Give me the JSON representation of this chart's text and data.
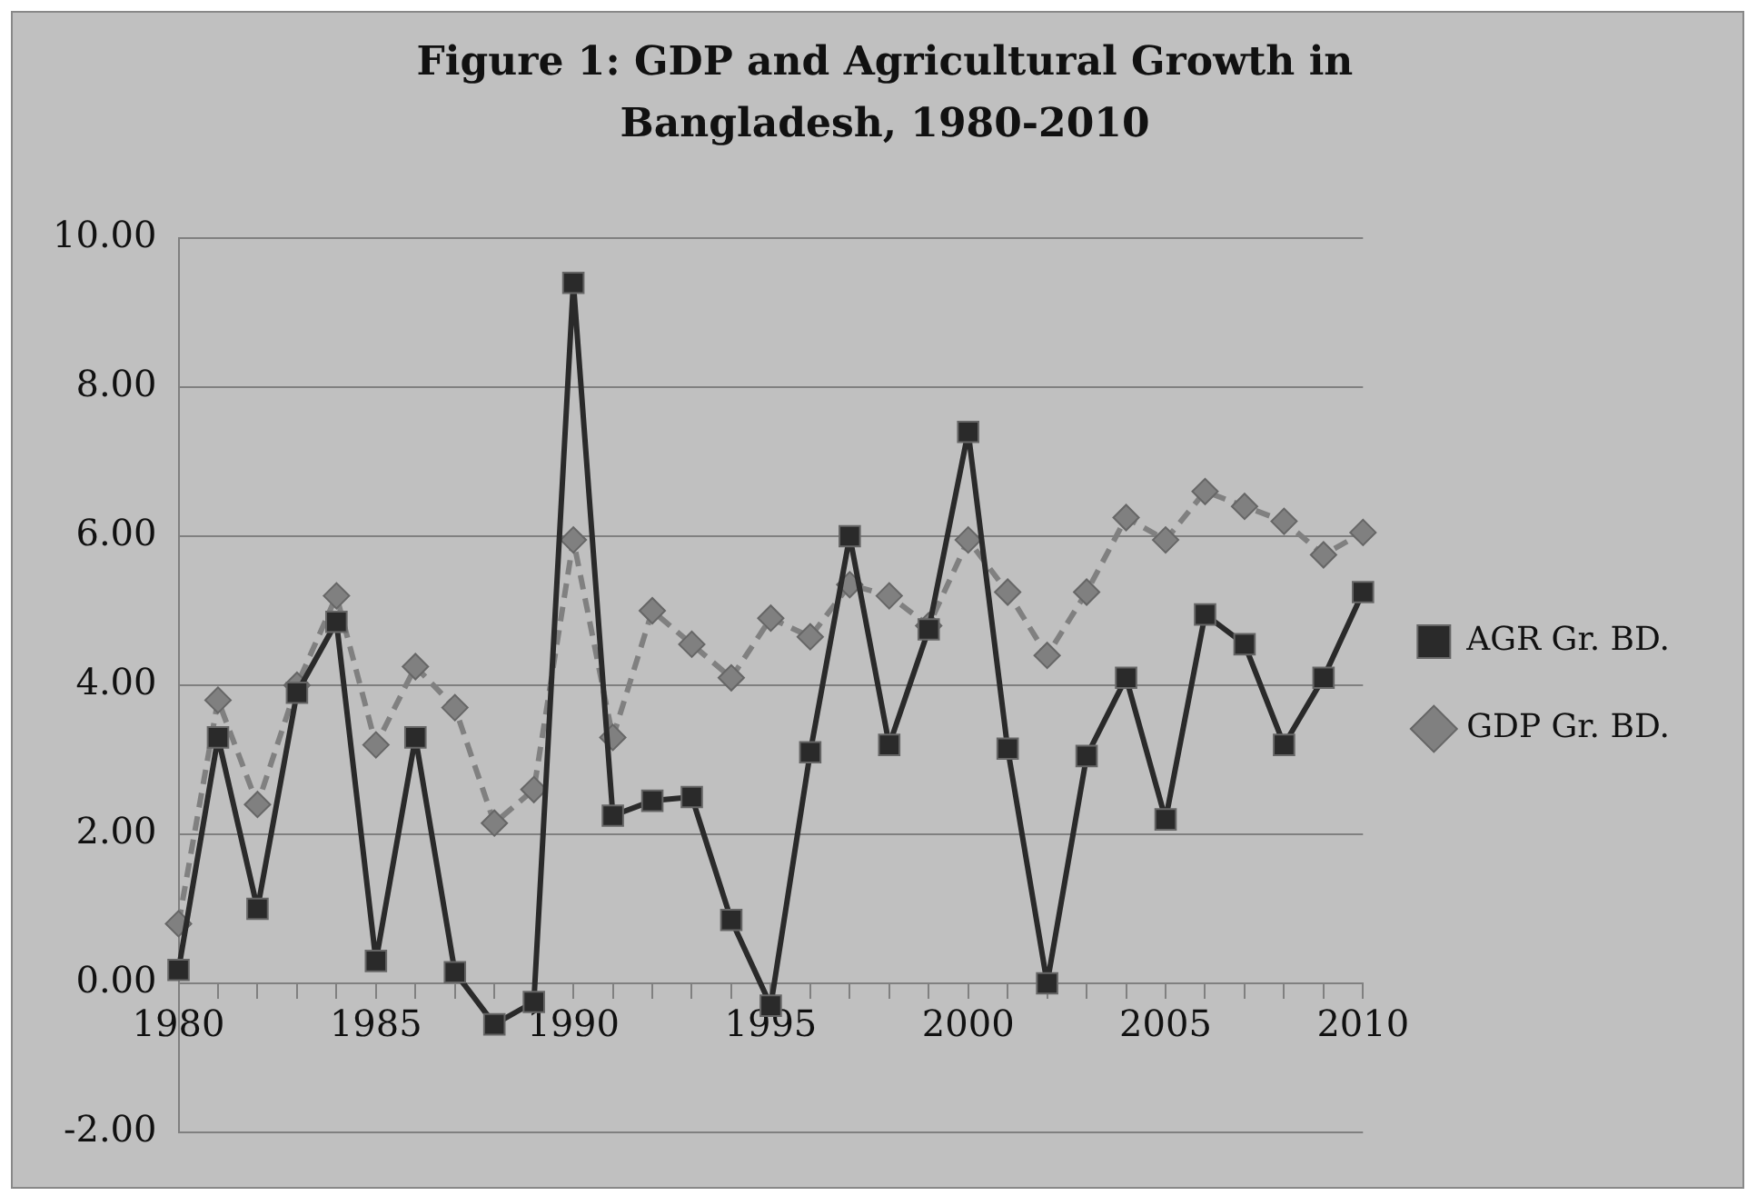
{
  "chart_data": {
    "type": "line",
    "title": "Figure 1: GDP and Agricultural Growth in Bangladesh, 1980-2010",
    "categories": [
      "1980",
      null,
      null,
      null,
      null,
      "1985",
      null,
      null,
      null,
      null,
      "1990",
      null,
      null,
      null,
      null,
      "1995",
      null,
      null,
      null,
      null,
      "2000",
      null,
      null,
      null,
      null,
      "2005",
      null,
      null,
      null,
      null,
      "2010"
    ],
    "series": [
      {
        "name": "GDP Gr. BD.",
        "color": "#808080",
        "marker": "diamond",
        "line_style": "dashed",
        "values": [
          0.8,
          3.8,
          2.4,
          4.0,
          5.2,
          3.2,
          4.25,
          3.7,
          2.15,
          2.6,
          5.95,
          3.3,
          5.0,
          4.55,
          4.1,
          4.9,
          4.65,
          5.35,
          5.2,
          4.8,
          5.95,
          5.25,
          4.4,
          5.25,
          6.25,
          5.95,
          6.6,
          6.4,
          6.2,
          5.75,
          6.05
        ]
      },
      {
        "name": "AGR Gr. BD.",
        "color": "#2a2a2a",
        "marker": "square",
        "line_style": "solid",
        "values": [
          0.18,
          3.3,
          1.0,
          3.9,
          4.85,
          0.3,
          3.3,
          0.15,
          -0.55,
          -0.25,
          9.4,
          2.25,
          2.45,
          2.5,
          0.85,
          -0.3,
          3.1,
          6.0,
          3.2,
          4.75,
          7.4,
          3.15,
          0.0,
          3.05,
          4.1,
          2.2,
          4.95,
          4.55,
          3.2,
          4.1,
          5.25
        ]
      }
    ],
    "ylim": [
      -2,
      10
    ],
    "yticks": [
      {
        "value": -2,
        "label": "-2.00"
      },
      {
        "value": 0,
        "label": "0.00"
      },
      {
        "value": 2,
        "label": "2.00"
      },
      {
        "value": 4,
        "label": "4.00"
      },
      {
        "value": 6,
        "label": "6.00"
      },
      {
        "value": 8,
        "label": "8.00"
      },
      {
        "value": 10,
        "label": "10.00"
      }
    ],
    "grid": "y",
    "legend": "right"
  }
}
